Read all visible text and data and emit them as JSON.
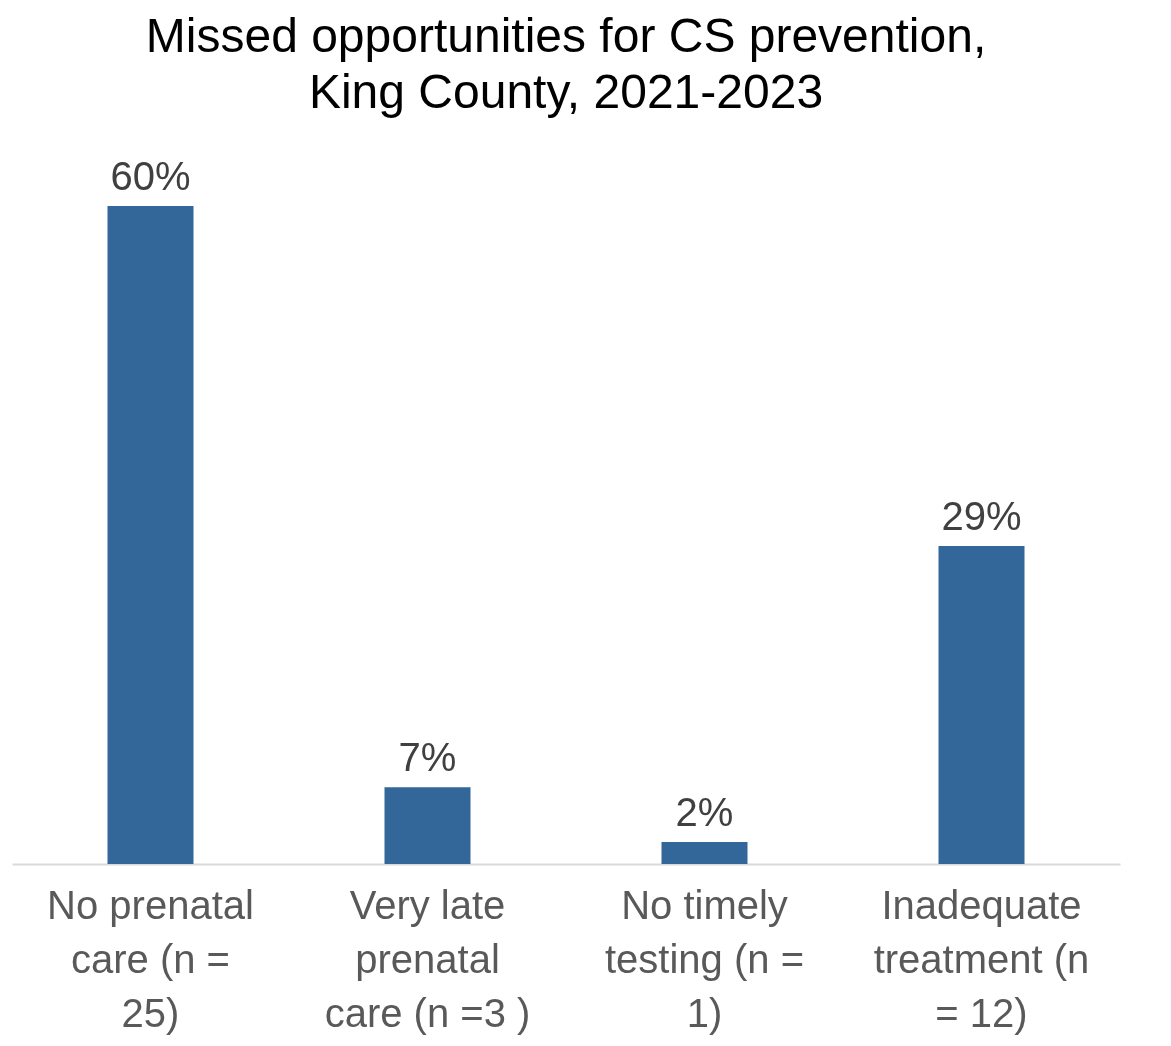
{
  "chart_data": {
    "type": "bar",
    "title": [
      "Missed opportunities for CS prevention,",
      "King County, 2021-2023"
    ],
    "categories": [
      "No prenatal care (n = 25)",
      "Very late prenatal care (n =3 )",
      "No timely testing (n = 1)",
      "Inadequate treatment (n = 12)"
    ],
    "values": [
      60,
      7,
      2,
      29
    ],
    "value_labels": [
      "60%",
      "7%",
      "2%",
      "29%"
    ],
    "color": "#336699",
    "grid": false
  }
}
